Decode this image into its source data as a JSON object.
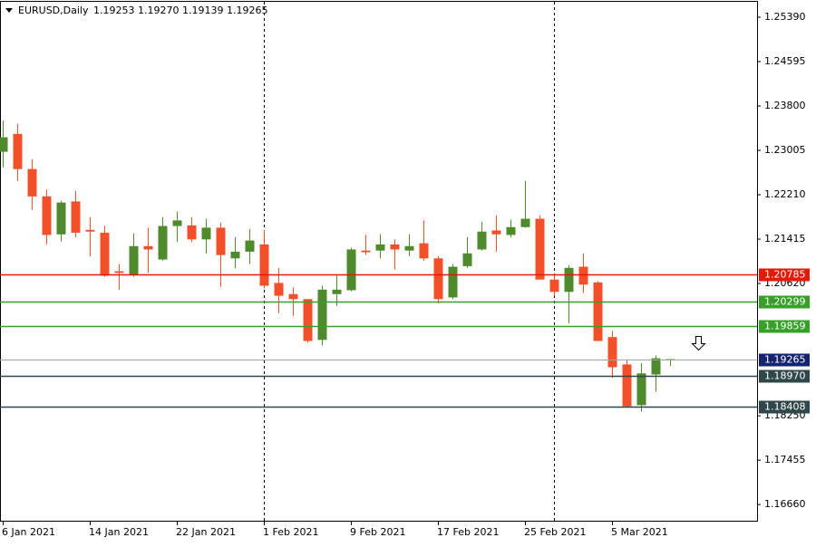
{
  "chart_data": {
    "type": "candlestick",
    "symbol": "EURUSD,Daily",
    "last_quote": [
      "1.19253",
      "1.19270",
      "1.19139",
      "1.19265"
    ],
    "categories": [
      "6 Jan 2021",
      null,
      null,
      null,
      null,
      null,
      "14 Jan 2021",
      null,
      null,
      null,
      null,
      null,
      "22 Jan 2021",
      null,
      null,
      null,
      null,
      null,
      "1 Feb 2021",
      null,
      null,
      null,
      null,
      null,
      "9 Feb 2021",
      null,
      null,
      null,
      null,
      null,
      "17 Feb 2021",
      null,
      null,
      null,
      null,
      null,
      "25 Feb 2021",
      null,
      null,
      null,
      null,
      null,
      "5 Mar 2021",
      null,
      null,
      null,
      null
    ],
    "open": [
      1.2298,
      1.233,
      1.2267,
      1.2218,
      1.215,
      1.2209,
      1.2158,
      1.2153,
      1.2084,
      1.2077,
      1.2129,
      1.2105,
      1.2165,
      1.2166,
      1.2141,
      1.2162,
      1.2107,
      1.2119,
      1.2132,
      1.2063,
      1.2043,
      1.2034,
      1.1961,
      1.2043,
      1.205,
      1.2121,
      1.2121,
      1.2132,
      1.2121,
      1.2134,
      1.2107,
      1.2037,
      1.2093,
      1.2123,
      1.2157,
      1.2149,
      1.2163,
      1.2178,
      1.2069,
      1.2047,
      1.2092,
      1.2064,
      1.1966,
      1.1917,
      1.1844,
      1.1899,
      1.19253
    ],
    "high": [
      1.2354,
      1.2348,
      1.2285,
      1.223,
      1.221,
      1.2228,
      1.2181,
      1.2165,
      1.2097,
      1.2152,
      1.2162,
      1.2181,
      1.2191,
      1.2181,
      1.2178,
      1.2171,
      1.2145,
      1.216,
      1.2158,
      1.209,
      1.2055,
      1.2034,
      1.2058,
      1.2076,
      1.2126,
      1.2149,
      1.215,
      1.2141,
      1.215,
      1.2175,
      1.2111,
      1.2097,
      1.2145,
      1.2173,
      1.2184,
      1.2176,
      1.2246,
      1.2184,
      1.2079,
      1.2095,
      1.2116,
      1.2066,
      1.1977,
      1.1925,
      1.1919,
      1.1933,
      1.1927
    ],
    "low": [
      1.227,
      1.2246,
      1.2194,
      1.2132,
      1.2137,
      1.2145,
      1.2111,
      1.2074,
      1.2051,
      1.2074,
      1.2081,
      1.2103,
      1.2136,
      1.2136,
      1.2116,
      1.2056,
      1.2089,
      1.2097,
      1.2053,
      1.2009,
      1.2004,
      1.1956,
      1.1951,
      1.2022,
      1.2048,
      1.2113,
      1.2107,
      1.2087,
      1.2111,
      1.2103,
      1.2026,
      1.2034,
      1.209,
      1.2121,
      1.2119,
      1.2145,
      1.2162,
      1.2069,
      1.204,
      1.1991,
      1.2045,
      1.1959,
      1.1893,
      1.1841,
      1.1833,
      1.1868,
      1.19139
    ],
    "close": [
      1.2324,
      1.2267,
      1.2218,
      1.2149,
      1.2207,
      1.2153,
      1.2155,
      1.2076,
      1.2081,
      1.2129,
      1.2123,
      1.2165,
      1.2175,
      1.2141,
      1.2162,
      1.2113,
      1.2119,
      1.2139,
      1.2058,
      1.204,
      1.2034,
      1.1959,
      1.2051,
      1.2051,
      1.2123,
      1.2118,
      1.2132,
      1.2123,
      1.2129,
      1.2107,
      1.2034,
      1.2092,
      1.2116,
      1.2155,
      1.215,
      1.2163,
      1.2178,
      1.2069,
      1.2047,
      1.209,
      1.206,
      1.1959,
      1.1912,
      1.1842,
      1.1901,
      1.1928,
      1.19265
    ],
    "up_color": "#4f8a2c",
    "down_color": "#f2502a",
    "ylim": [
      1.16354,
      1.25666
    ],
    "yticks": [
      {
        "value": 1.2539,
        "label": "1.25390"
      },
      1.24595,
      {
        "value": 1.238,
        "label": "1.23800"
      },
      1.23005,
      {
        "value": 1.2221,
        "label": "1.22210"
      },
      1.21415,
      {
        "value": 1.2062,
        "label": "1.20620"
      },
      {
        "value": 1.1825,
        "label": "1.18250"
      },
      1.17455,
      {
        "value": 1.1666,
        "label": "1.16660"
      }
    ],
    "levels": [
      {
        "value": 1.20785,
        "color": "#e31a0b"
      },
      {
        "value": 1.20299,
        "color": "#38a02a"
      },
      {
        "value": 1.19859,
        "color": "#38a02a"
      },
      {
        "value": 1.19265,
        "color": "#16246e",
        "line_color": "#9aa7ad"
      },
      {
        "value": 1.1897,
        "label": "1.18970",
        "color": "#30474a"
      },
      {
        "value": 1.18408,
        "color": "#30474a"
      }
    ]
  }
}
